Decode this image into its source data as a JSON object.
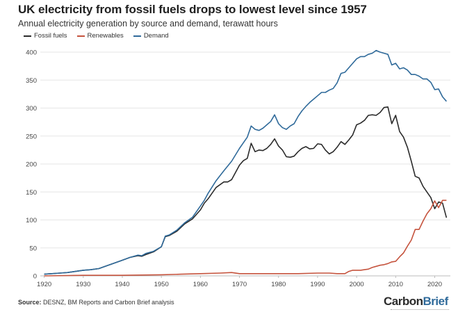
{
  "header": {
    "title": "UK electricity from fossil fuels drops to lowest level since 1957",
    "subtitle": "Annual electricity generation by source and demand, terawatt hours"
  },
  "footer": {
    "source_label": "Source:",
    "source_text": " DESNZ, BM Reports and Carbon Brief analysis",
    "brand_part1": "Carbon",
    "brand_part2": "Brief"
  },
  "chart_data": {
    "type": "line",
    "title": "UK electricity from fossil fuels drops to lowest level since 1957",
    "subtitle": "Annual electricity generation by source and demand, terawatt hours",
    "xlabel": "",
    "ylabel": "",
    "xlim": [
      1919,
      2024
    ],
    "ylim": [
      0,
      400
    ],
    "x_ticks": [
      1920,
      1930,
      1940,
      1950,
      1960,
      1970,
      1980,
      1990,
      2000,
      2010,
      2020
    ],
    "y_ticks": [
      0,
      50,
      100,
      150,
      200,
      250,
      300,
      350,
      400
    ],
    "grid": true,
    "legend": "top-left",
    "series": [
      {
        "name": "Fossil fuels",
        "color": "#2b2b2b",
        "points": [
          [
            1920,
            3
          ],
          [
            1922,
            4
          ],
          [
            1924,
            5
          ],
          [
            1926,
            6
          ],
          [
            1928,
            8
          ],
          [
            1930,
            10
          ],
          [
            1932,
            11
          ],
          [
            1934,
            13
          ],
          [
            1936,
            18
          ],
          [
            1938,
            23
          ],
          [
            1940,
            28
          ],
          [
            1942,
            33
          ],
          [
            1944,
            36
          ],
          [
            1945,
            35
          ],
          [
            1946,
            38
          ],
          [
            1948,
            43
          ],
          [
            1950,
            52
          ],
          [
            1951,
            70
          ],
          [
            1952,
            72
          ],
          [
            1954,
            80
          ],
          [
            1956,
            93
          ],
          [
            1958,
            102
          ],
          [
            1960,
            118
          ],
          [
            1961,
            130
          ],
          [
            1962,
            138
          ],
          [
            1964,
            158
          ],
          [
            1966,
            168
          ],
          [
            1967,
            168
          ],
          [
            1968,
            172
          ],
          [
            1970,
            198
          ],
          [
            1971,
            206
          ],
          [
            1972,
            210
          ],
          [
            1973,
            237
          ],
          [
            1974,
            222
          ],
          [
            1975,
            225
          ],
          [
            1976,
            224
          ],
          [
            1977,
            228
          ],
          [
            1978,
            235
          ],
          [
            1979,
            245
          ],
          [
            1980,
            232
          ],
          [
            1981,
            225
          ],
          [
            1982,
            213
          ],
          [
            1983,
            212
          ],
          [
            1984,
            214
          ],
          [
            1985,
            222
          ],
          [
            1986,
            228
          ],
          [
            1987,
            231
          ],
          [
            1988,
            227
          ],
          [
            1989,
            228
          ],
          [
            1990,
            236
          ],
          [
            1991,
            235
          ],
          [
            1992,
            225
          ],
          [
            1993,
            218
          ],
          [
            1994,
            222
          ],
          [
            1995,
            230
          ],
          [
            1996,
            240
          ],
          [
            1997,
            235
          ],
          [
            1998,
            243
          ],
          [
            1999,
            252
          ],
          [
            2000,
            270
          ],
          [
            2001,
            273
          ],
          [
            2002,
            278
          ],
          [
            2003,
            287
          ],
          [
            2004,
            288
          ],
          [
            2005,
            287
          ],
          [
            2006,
            292
          ],
          [
            2007,
            301
          ],
          [
            2008,
            302
          ],
          [
            2009,
            272
          ],
          [
            2010,
            287
          ],
          [
            2011,
            258
          ],
          [
            2012,
            248
          ],
          [
            2013,
            230
          ],
          [
            2014,
            205
          ],
          [
            2015,
            178
          ],
          [
            2016,
            175
          ],
          [
            2017,
            160
          ],
          [
            2018,
            150
          ],
          [
            2019,
            140
          ],
          [
            2020,
            120
          ],
          [
            2021,
            132
          ],
          [
            2022,
            130
          ],
          [
            2023,
            104
          ]
        ]
      },
      {
        "name": "Renewables",
        "color": "#c5533d",
        "points": [
          [
            1920,
            0
          ],
          [
            1930,
            1
          ],
          [
            1940,
            1
          ],
          [
            1950,
            2
          ],
          [
            1955,
            3
          ],
          [
            1960,
            4
          ],
          [
            1965,
            5
          ],
          [
            1968,
            6
          ],
          [
            1970,
            4
          ],
          [
            1975,
            4
          ],
          [
            1980,
            4
          ],
          [
            1985,
            4
          ],
          [
            1990,
            5
          ],
          [
            1993,
            5
          ],
          [
            1995,
            4
          ],
          [
            1997,
            4
          ],
          [
            1998,
            8
          ],
          [
            1999,
            10
          ],
          [
            2000,
            10
          ],
          [
            2001,
            10
          ],
          [
            2002,
            11
          ],
          [
            2003,
            12
          ],
          [
            2004,
            15
          ],
          [
            2005,
            17
          ],
          [
            2006,
            19
          ],
          [
            2007,
            20
          ],
          [
            2008,
            22
          ],
          [
            2009,
            25
          ],
          [
            2010,
            26
          ],
          [
            2011,
            34
          ],
          [
            2012,
            41
          ],
          [
            2013,
            53
          ],
          [
            2014,
            64
          ],
          [
            2015,
            83
          ],
          [
            2016,
            83
          ],
          [
            2017,
            98
          ],
          [
            2018,
            111
          ],
          [
            2019,
            120
          ],
          [
            2020,
            134
          ],
          [
            2021,
            122
          ],
          [
            2022,
            135
          ],
          [
            2023,
            135
          ]
        ]
      },
      {
        "name": "Demand",
        "color": "#2f6a9a",
        "points": [
          [
            1920,
            3
          ],
          [
            1922,
            4
          ],
          [
            1924,
            5
          ],
          [
            1926,
            6
          ],
          [
            1928,
            8
          ],
          [
            1930,
            10
          ],
          [
            1932,
            11
          ],
          [
            1934,
            13
          ],
          [
            1936,
            18
          ],
          [
            1938,
            23
          ],
          [
            1940,
            28
          ],
          [
            1942,
            33
          ],
          [
            1944,
            37
          ],
          [
            1945,
            36
          ],
          [
            1946,
            40
          ],
          [
            1948,
            44
          ],
          [
            1950,
            52
          ],
          [
            1951,
            71
          ],
          [
            1952,
            73
          ],
          [
            1954,
            82
          ],
          [
            1956,
            95
          ],
          [
            1958,
            105
          ],
          [
            1960,
            125
          ],
          [
            1961,
            135
          ],
          [
            1962,
            148
          ],
          [
            1964,
            170
          ],
          [
            1966,
            188
          ],
          [
            1968,
            205
          ],
          [
            1970,
            228
          ],
          [
            1971,
            238
          ],
          [
            1972,
            248
          ],
          [
            1973,
            268
          ],
          [
            1974,
            262
          ],
          [
            1975,
            260
          ],
          [
            1976,
            264
          ],
          [
            1977,
            270
          ],
          [
            1978,
            276
          ],
          [
            1979,
            288
          ],
          [
            1980,
            272
          ],
          [
            1981,
            265
          ],
          [
            1982,
            262
          ],
          [
            1983,
            268
          ],
          [
            1984,
            272
          ],
          [
            1985,
            285
          ],
          [
            1986,
            295
          ],
          [
            1987,
            303
          ],
          [
            1988,
            310
          ],
          [
            1989,
            316
          ],
          [
            1990,
            322
          ],
          [
            1991,
            328
          ],
          [
            1992,
            328
          ],
          [
            1993,
            332
          ],
          [
            1994,
            335
          ],
          [
            1995,
            345
          ],
          [
            1996,
            362
          ],
          [
            1997,
            364
          ],
          [
            1998,
            372
          ],
          [
            1999,
            380
          ],
          [
            2000,
            388
          ],
          [
            2001,
            392
          ],
          [
            2002,
            392
          ],
          [
            2003,
            396
          ],
          [
            2004,
            398
          ],
          [
            2005,
            403
          ],
          [
            2006,
            400
          ],
          [
            2007,
            398
          ],
          [
            2008,
            396
          ],
          [
            2009,
            377
          ],
          [
            2010,
            380
          ],
          [
            2011,
            370
          ],
          [
            2012,
            372
          ],
          [
            2013,
            368
          ],
          [
            2014,
            360
          ],
          [
            2015,
            360
          ],
          [
            2016,
            357
          ],
          [
            2017,
            352
          ],
          [
            2018,
            352
          ],
          [
            2019,
            346
          ],
          [
            2020,
            333
          ],
          [
            2021,
            334
          ],
          [
            2022,
            320
          ],
          [
            2023,
            312
          ]
        ]
      }
    ]
  }
}
